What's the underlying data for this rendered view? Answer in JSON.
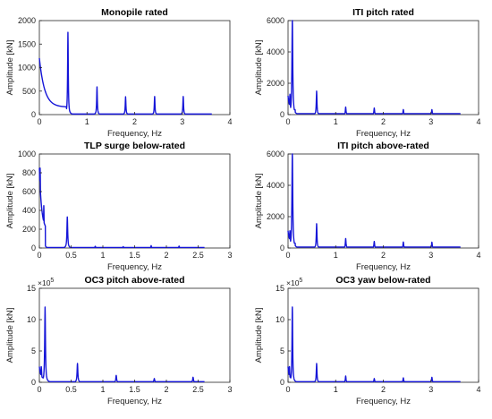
{
  "chart_data": [
    {
      "type": "line",
      "title": "Monopile rated",
      "xlabel": "Frequency, Hz",
      "ylabel": "Amplitude [kN]",
      "xlim": [
        0,
        4
      ],
      "ylim": [
        0,
        2000
      ],
      "xticks": [
        "0",
        "1",
        "2",
        "3",
        "4"
      ],
      "yticks": [
        "0",
        "500",
        "1000",
        "1500",
        "2000"
      ],
      "exponent": "",
      "grid": false,
      "color": "#1515d8",
      "x_max": 3.62,
      "baseline": 12,
      "decay": {
        "peak": 1200,
        "tau": 0.11,
        "floor": 160,
        "until": 0.57
      },
      "peaks": [
        {
          "x": 0.04,
          "y": 850,
          "w": 0.012
        },
        {
          "x": 0.6,
          "y": 1750,
          "w": 0.008
        },
        {
          "x": 1.21,
          "y": 590,
          "w": 0.008
        },
        {
          "x": 1.81,
          "y": 380,
          "w": 0.008
        },
        {
          "x": 2.42,
          "y": 385,
          "w": 0.008
        },
        {
          "x": 3.02,
          "y": 385,
          "w": 0.008
        }
      ]
    },
    {
      "type": "line",
      "title": "ITI pitch rated",
      "xlabel": "Frequency, Hz",
      "ylabel": "Amplitude [kN]",
      "xlim": [
        0,
        4
      ],
      "ylim": [
        0,
        6000
      ],
      "xticks": [
        "0",
        "1",
        "2",
        "3",
        "4"
      ],
      "yticks": [
        "0",
        "2000",
        "4000",
        "6000"
      ],
      "exponent": "",
      "grid": false,
      "color": "#1515d8",
      "x_max": 3.62,
      "baseline": 60,
      "decay": {
        "peak": 1200,
        "tau": 0.03,
        "floor": 300,
        "until": 0.15
      },
      "peaks": [
        {
          "x": 0.04,
          "y": 1300,
          "w": 0.01
        },
        {
          "x": 0.09,
          "y": 6000,
          "w": 0.01
        },
        {
          "x": 0.6,
          "y": 1500,
          "w": 0.008
        },
        {
          "x": 1.21,
          "y": 480,
          "w": 0.008
        },
        {
          "x": 1.81,
          "y": 420,
          "w": 0.008
        },
        {
          "x": 2.42,
          "y": 320,
          "w": 0.008
        },
        {
          "x": 3.02,
          "y": 320,
          "w": 0.008
        }
      ]
    },
    {
      "type": "line",
      "title": "TLP surge below-rated",
      "xlabel": "Frequency, Hz",
      "ylabel": "Amplitude [kN]",
      "xlim": [
        0,
        3
      ],
      "ylim": [
        0,
        1000
      ],
      "xticks": [
        "0",
        "0.5",
        "1",
        "1.5",
        "2",
        "2.5",
        "3"
      ],
      "yticks": [
        "0",
        "200",
        "400",
        "600",
        "800",
        "1000"
      ],
      "exponent": "",
      "grid": false,
      "color": "#1515d8",
      "x_max": 2.6,
      "baseline": 5,
      "decay": {
        "peak": 850,
        "tau": 0.035,
        "floor": 190,
        "until": 0.095
      },
      "peaks": [
        {
          "x": 0.012,
          "y": 850,
          "w": 0.008
        },
        {
          "x": 0.07,
          "y": 450,
          "w": 0.006
        },
        {
          "x": 0.44,
          "y": 330,
          "w": 0.007
        },
        {
          "x": 0.88,
          "y": 18,
          "w": 0.006
        },
        {
          "x": 1.32,
          "y": 15,
          "w": 0.006
        },
        {
          "x": 1.76,
          "y": 25,
          "w": 0.006
        },
        {
          "x": 2.2,
          "y": 20,
          "w": 0.006
        }
      ]
    },
    {
      "type": "line",
      "title": "ITI pitch above-rated",
      "xlabel": "Frequency, Hz",
      "ylabel": "Amplitude [kN]",
      "xlim": [
        0,
        4
      ],
      "ylim": [
        0,
        6000
      ],
      "xticks": [
        "0",
        "1",
        "2",
        "3",
        "4"
      ],
      "yticks": [
        "0",
        "2000",
        "4000",
        "6000"
      ],
      "exponent": "",
      "grid": false,
      "color": "#1515d8",
      "x_max": 3.62,
      "baseline": 60,
      "decay": {
        "peak": 1100,
        "tau": 0.03,
        "floor": 300,
        "until": 0.15
      },
      "peaks": [
        {
          "x": 0.04,
          "y": 1100,
          "w": 0.01
        },
        {
          "x": 0.09,
          "y": 6000,
          "w": 0.01
        },
        {
          "x": 0.6,
          "y": 1550,
          "w": 0.008
        },
        {
          "x": 1.21,
          "y": 600,
          "w": 0.008
        },
        {
          "x": 1.81,
          "y": 420,
          "w": 0.008
        },
        {
          "x": 2.42,
          "y": 380,
          "w": 0.008
        },
        {
          "x": 3.02,
          "y": 370,
          "w": 0.008
        }
      ]
    },
    {
      "type": "line",
      "title": "OC3 pitch above-rated",
      "xlabel": "Frequency, Hz",
      "ylabel": "Amplitude [kN]",
      "xlim": [
        0,
        3
      ],
      "ylim": [
        0,
        15
      ],
      "xticks": [
        "0",
        "0.5",
        "1",
        "1.5",
        "2",
        "2.5",
        "3"
      ],
      "yticks": [
        "0",
        "5",
        "10",
        "15"
      ],
      "exponent": "5",
      "grid": false,
      "color": "#1515d8",
      "x_max": 2.6,
      "baseline": 0.1,
      "decay": {
        "peak": 2.5,
        "tau": 0.02,
        "floor": 0.6,
        "until": 0.08
      },
      "peaks": [
        {
          "x": 0.03,
          "y": 2.5,
          "w": 0.008
        },
        {
          "x": 0.09,
          "y": 12,
          "w": 0.007
        },
        {
          "x": 0.6,
          "y": 3.0,
          "w": 0.007
        },
        {
          "x": 1.21,
          "y": 1.1,
          "w": 0.007
        },
        {
          "x": 1.81,
          "y": 0.6,
          "w": 0.007
        },
        {
          "x": 2.42,
          "y": 0.8,
          "w": 0.007
        }
      ]
    },
    {
      "type": "line",
      "title": "OC3 yaw below-rated",
      "xlabel": "Frequency, Hz",
      "ylabel": "Amplitude [kN]",
      "xlim": [
        0,
        4
      ],
      "ylim": [
        0,
        15
      ],
      "xticks": [
        "0",
        "1",
        "2",
        "3",
        "4"
      ],
      "yticks": [
        "0",
        "5",
        "10",
        "15"
      ],
      "exponent": "5",
      "grid": false,
      "color": "#1515d8",
      "x_max": 3.62,
      "baseline": 0.1,
      "decay": {
        "peak": 2.5,
        "tau": 0.02,
        "floor": 0.6,
        "until": 0.08
      },
      "peaks": [
        {
          "x": 0.03,
          "y": 2.5,
          "w": 0.008
        },
        {
          "x": 0.09,
          "y": 12,
          "w": 0.008
        },
        {
          "x": 0.6,
          "y": 3.0,
          "w": 0.008
        },
        {
          "x": 1.21,
          "y": 1.0,
          "w": 0.008
        },
        {
          "x": 1.81,
          "y": 0.6,
          "w": 0.008
        },
        {
          "x": 2.42,
          "y": 0.7,
          "w": 0.008
        },
        {
          "x": 3.02,
          "y": 0.8,
          "w": 0.008
        }
      ]
    }
  ]
}
